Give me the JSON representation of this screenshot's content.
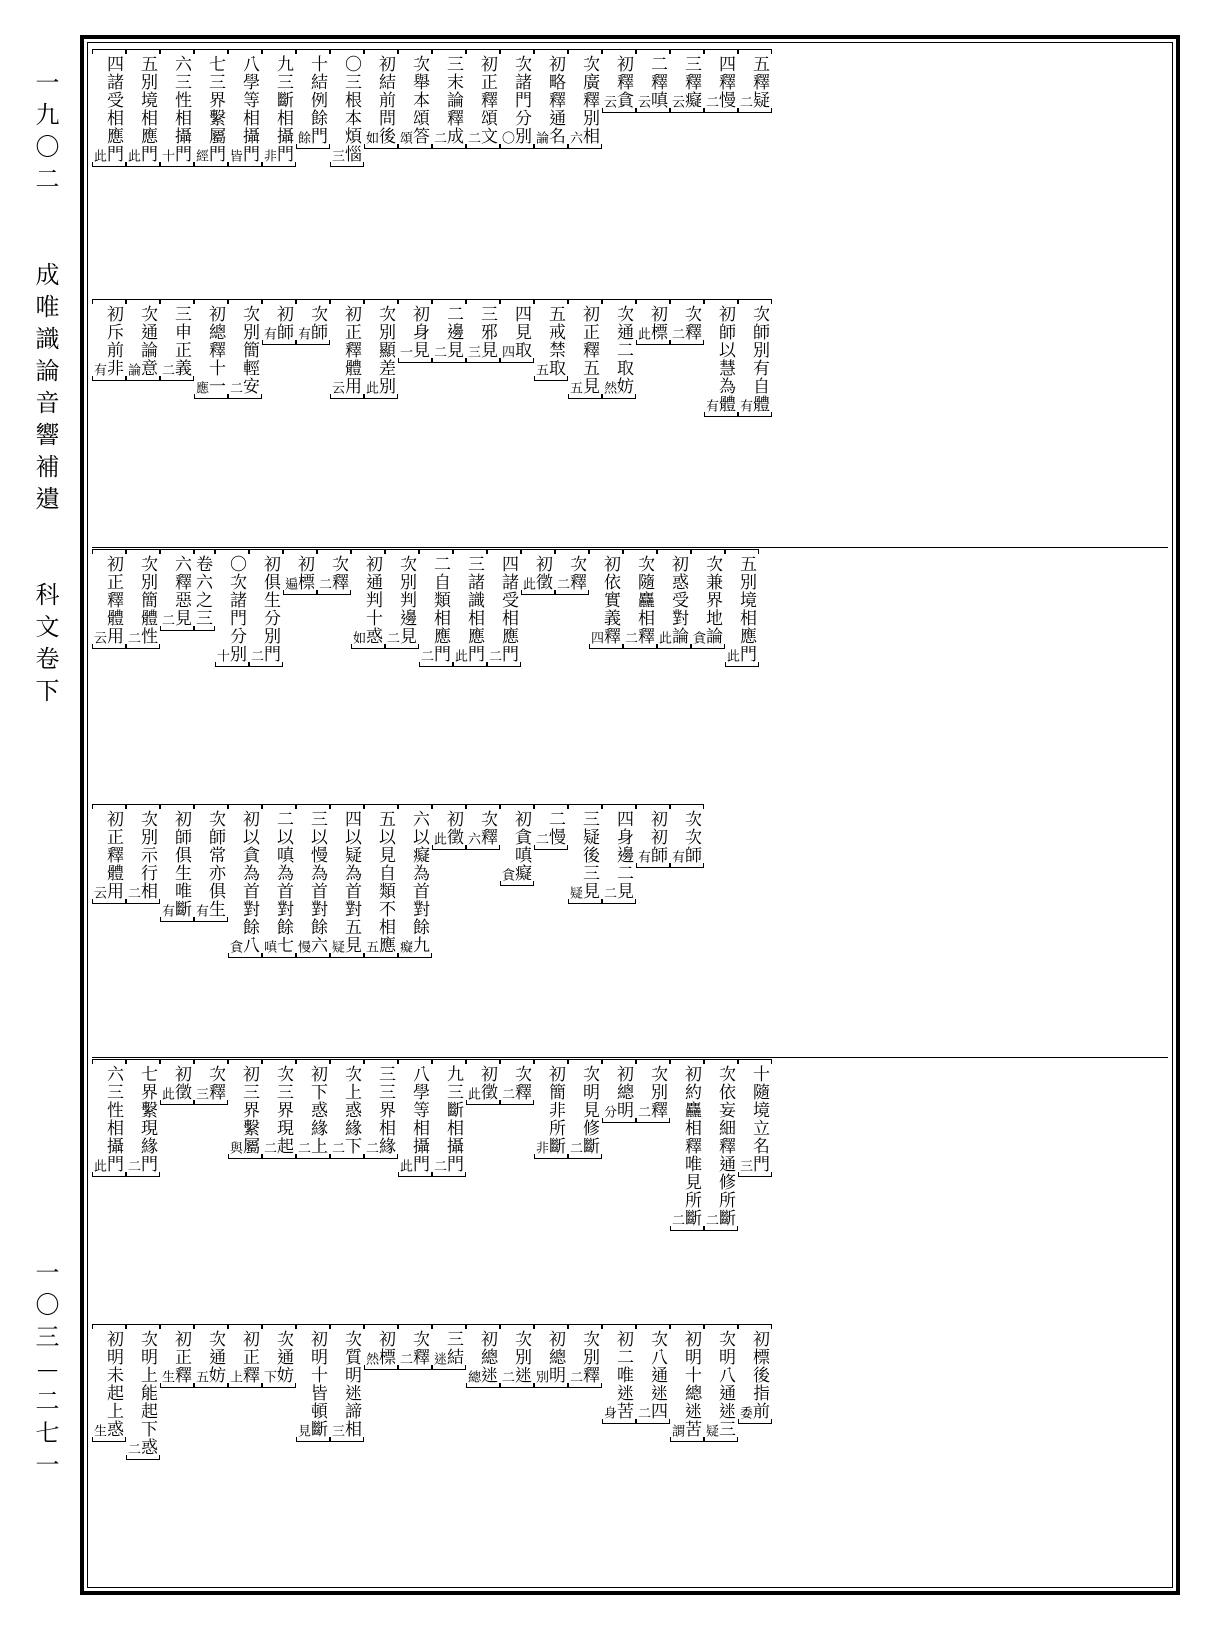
{
  "sidebar": {
    "volume_ref": "一九〇二",
    "title": "成唯識論音響補遺",
    "subtitle": "科文卷下",
    "page_number": "一〇三—二七一"
  },
  "panel1": {
    "top_row": [
      {
        "label": "四諸受相應門",
        "note": "此"
      },
      {
        "label": "五別境相應門",
        "note": "此"
      },
      {
        "label": "六三性相攝門",
        "note": "十"
      },
      {
        "label": "七三界繫屬門",
        "note": "經"
      },
      {
        "label": "八學等相攝門",
        "note": "皆"
      },
      {
        "label": "九三斷相攝門",
        "note": "非"
      },
      {
        "label": "十結例餘門",
        "note": "餘"
      },
      {
        "label": "〇三根本煩惱",
        "note": "三"
      },
      {
        "label": "初結前問後",
        "note": "如"
      },
      {
        "label": "次舉本頌答",
        "note": "頌"
      },
      {
        "label": "三末論釋成",
        "note": "二"
      },
      {
        "label": "初正釋頌文",
        "note": "二"
      },
      {
        "label": "次諸門分別",
        "note": "〇"
      },
      {
        "label": "初略釋通名",
        "note": "論"
      },
      {
        "label": "次廣釋別相",
        "note": "六"
      },
      {
        "label": "初釋貪",
        "note": "云"
      },
      {
        "label": "二釋嗔",
        "note": "云"
      },
      {
        "label": "三釋癡",
        "note": "云"
      },
      {
        "label": "四釋慢",
        "note": "二"
      },
      {
        "label": "五釋疑",
        "note": "二"
      }
    ],
    "bottom_row": [
      {
        "label": "初斥前非",
        "note": "有"
      },
      {
        "label": "次通論意",
        "note": "論"
      },
      {
        "label": "三申正義",
        "note": "二"
      },
      {
        "label": "初總釋十一",
        "note": "應"
      },
      {
        "label": "次別簡輕安",
        "note": "二"
      },
      {
        "label": "初師",
        "note": "有"
      },
      {
        "label": "次師",
        "note": "有"
      },
      {
        "label": "初正釋體用",
        "note": "云"
      },
      {
        "label": "次別顯差別",
        "note": "此"
      },
      {
        "label": "初身見",
        "note": "一"
      },
      {
        "label": "二邊見",
        "note": "二"
      },
      {
        "label": "三邪見",
        "note": "三"
      },
      {
        "label": "四見取",
        "note": "四"
      },
      {
        "label": "五戒禁取",
        "note": "五"
      },
      {
        "label": "初正釋五見",
        "note": "五"
      },
      {
        "label": "次通二取妨",
        "note": "然"
      },
      {
        "label": "初標",
        "note": "此"
      },
      {
        "label": "次釋",
        "note": "二"
      },
      {
        "label": "初師以慧為體",
        "note": "有"
      },
      {
        "label": "次師別有自體",
        "note": "有"
      }
    ]
  },
  "panel2": {
    "top_row": [
      {
        "label": "初正釋體用",
        "note": "云"
      },
      {
        "label": "次別簡體性",
        "note": "二"
      },
      {
        "label": "六釋惡見",
        "note": "二"
      },
      {
        "label": "卷六之三",
        "note": ""
      },
      {
        "label": "〇次諸門分別",
        "note": "十"
      },
      {
        "label": "初俱生分別門",
        "note": "二"
      },
      {
        "label": "初標",
        "note": "遍"
      },
      {
        "label": "次釋",
        "note": "二"
      },
      {
        "label": "初通判十惑",
        "note": "如"
      },
      {
        "label": "次別判邊見",
        "note": "二"
      },
      {
        "label": "二自類相應門",
        "note": "二"
      },
      {
        "label": "三諸識相應門",
        "note": "此"
      },
      {
        "label": "四諸受相應門",
        "note": "二"
      },
      {
        "label": "初徵",
        "note": "此"
      },
      {
        "label": "次釋",
        "note": "二"
      },
      {
        "label": "初依實義釋",
        "note": "四"
      },
      {
        "label": "次隨麤相釋",
        "note": "二"
      },
      {
        "label": "初惑受對論",
        "note": "此"
      },
      {
        "label": "次兼界地論",
        "note": "貪"
      },
      {
        "label": "五別境相應門",
        "note": "此"
      }
    ],
    "bottom_row": [
      {
        "label": "初正釋體用",
        "note": "云"
      },
      {
        "label": "次別示行相",
        "note": "二"
      },
      {
        "label": "初師俱生唯斷",
        "note": "有"
      },
      {
        "label": "次師常亦俱生",
        "note": "有"
      },
      {
        "label": "初以貪為首對餘八",
        "note": "貪"
      },
      {
        "label": "二以嗔為首對餘七",
        "note": "嗔"
      },
      {
        "label": "三以慢為首對餘六",
        "note": "慢"
      },
      {
        "label": "四以疑為首對五見",
        "note": "疑"
      },
      {
        "label": "五以見自類不相應",
        "note": "五"
      },
      {
        "label": "六以癡為首對餘九",
        "note": "癡"
      },
      {
        "label": "初徵",
        "note": "此"
      },
      {
        "label": "次釋",
        "note": "六"
      },
      {
        "label": "初貪嗔癡",
        "note": "貪"
      },
      {
        "label": "二慢",
        "note": "二"
      },
      {
        "label": "三疑後三見",
        "note": "疑"
      },
      {
        "label": "四身邊二見",
        "note": "二"
      },
      {
        "label": "初初師",
        "note": "有"
      },
      {
        "label": "次次師",
        "note": "有"
      }
    ]
  },
  "panel3": {
    "top_row": [
      {
        "label": "六三性相攝門",
        "note": "此"
      },
      {
        "label": "七界繫現緣門",
        "note": "二"
      },
      {
        "label": "初徵",
        "note": "此"
      },
      {
        "label": "次釋",
        "note": "三"
      },
      {
        "label": "初三界繫屬",
        "note": "與"
      },
      {
        "label": "次三界現起",
        "note": "二"
      },
      {
        "label": "初下惑緣上",
        "note": "二"
      },
      {
        "label": "次上惑緣下",
        "note": "二"
      },
      {
        "label": "三三界相緣",
        "note": "二"
      },
      {
        "label": "八學等相攝門",
        "note": "此"
      },
      {
        "label": "九三斷相攝門",
        "note": "二"
      },
      {
        "label": "初徵",
        "note": "此"
      },
      {
        "label": "次釋",
        "note": "二"
      },
      {
        "label": "初簡非所斷",
        "note": "非"
      },
      {
        "label": "次明見修斷",
        "note": "二"
      },
      {
        "label": "初總明",
        "note": "分"
      },
      {
        "label": "次別釋",
        "note": "二"
      },
      {
        "label": "初約麤相釋唯見所斷",
        "note": "二"
      },
      {
        "label": "次依妄細釋通修所斷",
        "note": "二"
      },
      {
        "label": "十隨境立名門",
        "note": "三"
      }
    ],
    "bottom_row": [
      {
        "label": "初明未起上惑",
        "note": "生"
      },
      {
        "label": "次明上能起下惑",
        "note": "二"
      },
      {
        "label": "初正釋",
        "note": "生"
      },
      {
        "label": "次通妨",
        "note": "五"
      },
      {
        "label": "初正釋",
        "note": "上"
      },
      {
        "label": "次通妨",
        "note": "下"
      },
      {
        "label": "初明十皆頓斷",
        "note": "見"
      },
      {
        "label": "次質明迷諦相",
        "note": "三"
      },
      {
        "label": "初標",
        "note": "然"
      },
      {
        "label": "次釋",
        "note": "二"
      },
      {
        "label": "三結",
        "note": "迷"
      },
      {
        "label": "初總迷",
        "note": "總"
      },
      {
        "label": "次別迷",
        "note": "二"
      },
      {
        "label": "初總明",
        "note": "別"
      },
      {
        "label": "次別釋",
        "note": "二"
      },
      {
        "label": "初二唯迷苦",
        "note": "身"
      },
      {
        "label": "次八通迷四",
        "note": "二"
      },
      {
        "label": "初明十總迷苦",
        "note": "謂"
      },
      {
        "label": "次明八通迷三",
        "note": "疑"
      },
      {
        "label": "初標後指前",
        "note": "委"
      }
    ]
  }
}
